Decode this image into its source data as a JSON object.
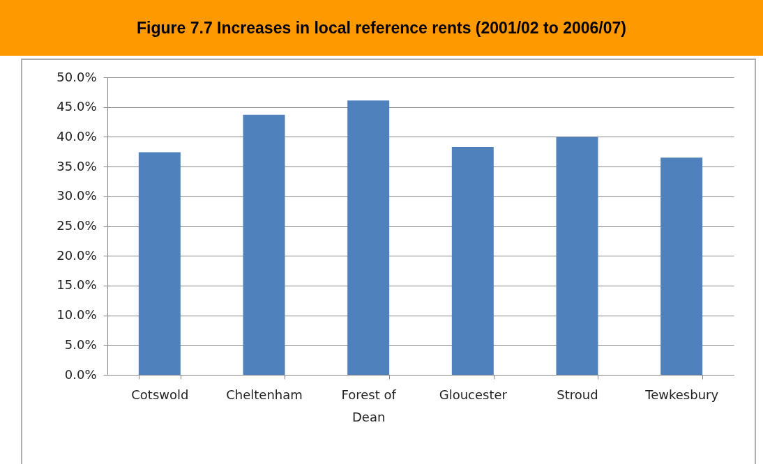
{
  "chart_data": {
    "type": "bar",
    "title": "Figure 7.7 Increases in local reference rents (2001/02 to 2006/07)",
    "categories": [
      "Cotswold",
      "Cheltenham",
      "Forest of Dean",
      "Gloucester",
      "Stroud",
      "Tewkesbury"
    ],
    "values": [
      37.4,
      43.7,
      46.1,
      38.3,
      40.0,
      36.5
    ],
    "color": "#4f81bd",
    "ylim": [
      0,
      50
    ],
    "yticks": [
      {
        "value": 0,
        "label": "0.0%"
      },
      {
        "value": 5,
        "label": "5.0%"
      },
      {
        "value": 10,
        "label": "10.0%"
      },
      {
        "value": 15,
        "label": "15.0%"
      },
      {
        "value": 20,
        "label": "20.0%"
      },
      {
        "value": 25,
        "label": "25.0%"
      },
      {
        "value": 30,
        "label": "30.0%"
      },
      {
        "value": 35,
        "label": "35.0%"
      },
      {
        "value": 40,
        "label": "40.0%"
      },
      {
        "value": 45,
        "label": "45.0%"
      },
      {
        "value": 50,
        "label": "50.0%"
      }
    ],
    "grid": "y"
  }
}
